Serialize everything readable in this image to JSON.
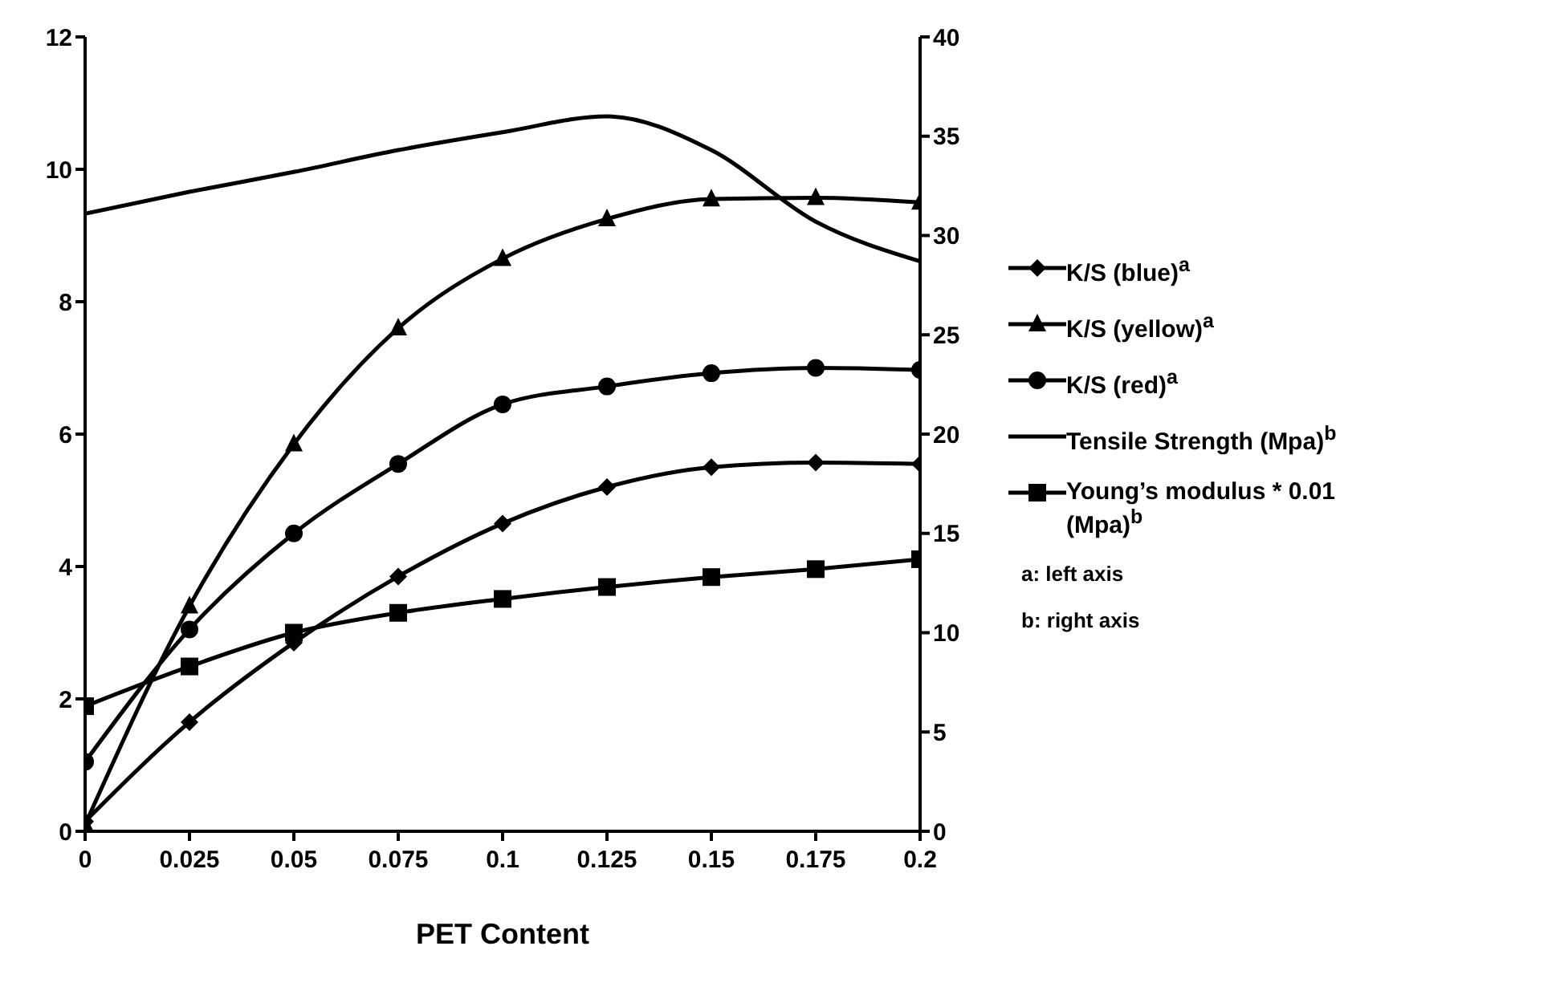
{
  "chart_data": {
    "type": "line",
    "xlabel": "PET Content",
    "x": [
      0,
      0.025,
      0.05,
      0.075,
      0.1,
      0.125,
      0.15,
      0.175,
      0.2
    ],
    "xlim": [
      0,
      0.2
    ],
    "xticks": [
      0,
      0.025,
      0.05,
      0.075,
      0.1,
      0.125,
      0.15,
      0.175,
      0.2
    ],
    "ylim": [
      0,
      12
    ],
    "yticks": [
      0,
      2,
      4,
      6,
      8,
      10,
      12
    ],
    "y2lim": [
      0,
      40
    ],
    "y2ticks": [
      0,
      5,
      10,
      15,
      20,
      25,
      30,
      35,
      40
    ],
    "grid": false,
    "legend": "right",
    "series": [
      {
        "name": "K/S (blue)$^{a}$",
        "color": "#000000",
        "marker": "diamond",
        "values": [
          0.15,
          1.65,
          2.85,
          3.85,
          4.65,
          5.2,
          5.5,
          5.57,
          5.55
        ]
      },
      {
        "name": "K/S (yellow)$^{a}$",
        "color": "#000000",
        "marker": "triangle",
        "values": [
          0.1,
          3.4,
          5.85,
          7.6,
          8.65,
          9.25,
          9.55,
          9.57,
          9.5
        ]
      },
      {
        "name": "K/S (red)$^{a}$",
        "color": "#000000",
        "marker": "circle",
        "values": [
          1.05,
          3.05,
          4.5,
          5.55,
          6.45,
          6.72,
          6.92,
          7.0,
          6.97
        ]
      },
      {
        "name": "Tensile Strength (Mpa)$^{b}$",
        "color": "#000000",
        "marker": "none",
        "axis": "y2",
        "values": [
          31.1,
          32.2,
          33.2,
          34.3,
          35.2,
          36.0,
          34.3,
          30.7,
          28.7
        ]
      },
      {
        "name": "Young’s modulus * 0.01 (Mpa)$^{b}$",
        "color": "#000000",
        "marker": "square",
        "axis": "y2",
        "values": [
          6.3,
          8.3,
          10,
          11,
          11.7,
          12.3,
          12.8,
          13.2,
          13.7
        ]
      }
    ],
    "annotations": [
      "a: left axis",
      "b: right axis"
    ]
  }
}
